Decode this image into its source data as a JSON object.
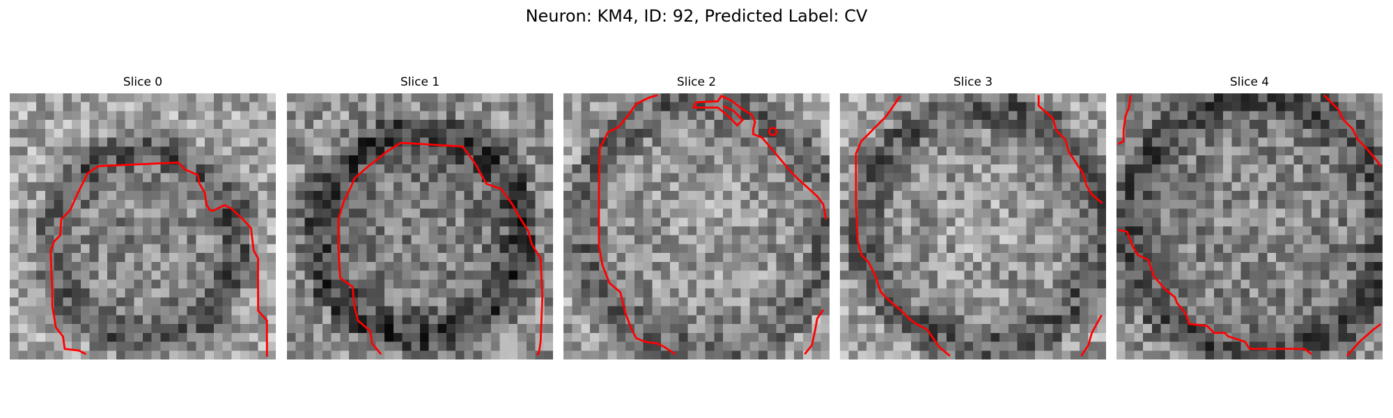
{
  "figure": {
    "title": "Neuron: KM4, ID: 92, Predicted Label: CV"
  },
  "colors": {
    "contour": "#ff0000",
    "colormap": "grayscale"
  },
  "slices": [
    {
      "title": "Slice 0"
    },
    {
      "title": "Slice 1"
    },
    {
      "title": "Slice 2"
    },
    {
      "title": "Slice 3"
    },
    {
      "title": "Slice 4"
    }
  ]
}
